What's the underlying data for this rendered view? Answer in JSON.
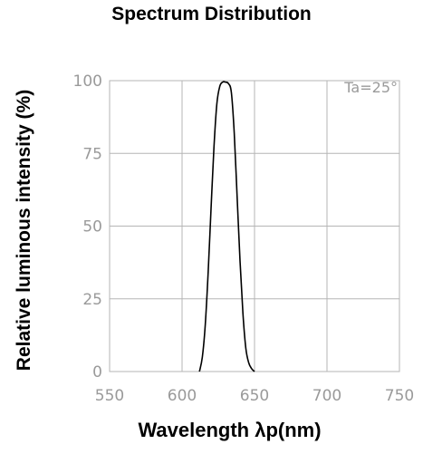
{
  "chart_data": {
    "type": "line",
    "title": "Spectrum Distribution",
    "xlabel": "Wavelength λp(nm)",
    "ylabel": "Relative luminous intensity (%)",
    "annotation": "Ta=25°",
    "xlim": [
      550,
      750
    ],
    "ylim": [
      0,
      100
    ],
    "x_ticks": [
      550,
      600,
      650,
      700,
      750
    ],
    "y_ticks": [
      0,
      25,
      50,
      75,
      100
    ],
    "grid": true,
    "colors": {
      "line": "#000000",
      "grid": "#b5b5b5",
      "tick": "#9a9a9a"
    },
    "series": [
      {
        "x": [
          612,
          614,
          616,
          618,
          620,
          622,
          624,
          626,
          628,
          630,
          632,
          634,
          636,
          638,
          640,
          642,
          644,
          646,
          648,
          650
        ],
        "y": [
          0,
          5,
          16,
          34,
          56,
          77,
          92,
          98,
          99.5,
          99.5,
          99,
          96,
          82,
          60,
          38,
          20,
          8,
          3,
          1,
          0
        ]
      }
    ]
  }
}
